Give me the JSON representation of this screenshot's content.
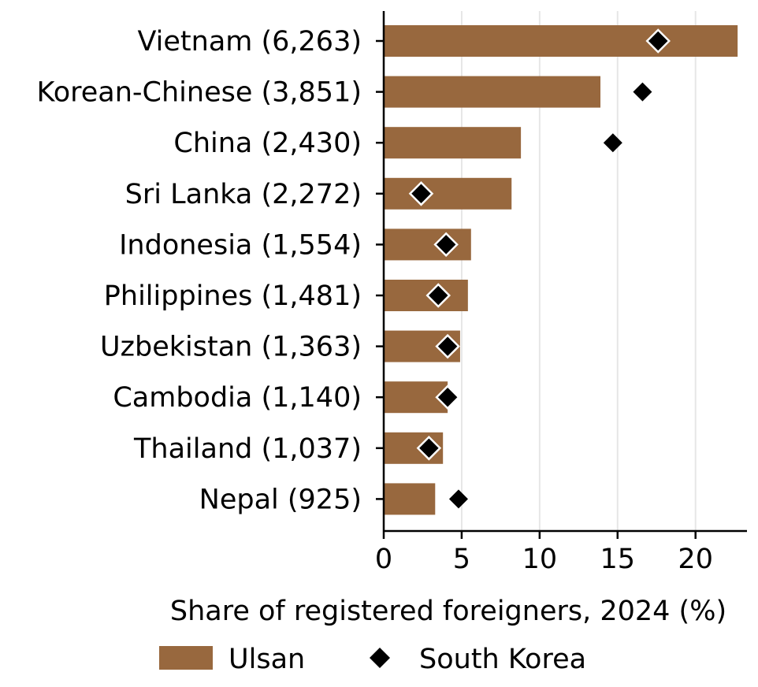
{
  "chart_data": {
    "type": "bar",
    "orientation": "horizontal",
    "categories": [
      "Vietnam (6,263)",
      "Korean-Chinese (3,851)",
      "China (2,430)",
      "Sri Lanka (2,272)",
      "Indonesia (1,554)",
      "Philippines (1,481)",
      "Uzbekistan (1,363)",
      "Cambodia (1,140)",
      "Thailand (1,037)",
      "Nepal (925)"
    ],
    "series": [
      {
        "name": "Ulsan",
        "kind": "bar",
        "color": "#98683e",
        "values": [
          22.7,
          13.9,
          8.8,
          8.2,
          5.6,
          5.4,
          4.9,
          4.1,
          3.8,
          3.3
        ]
      },
      {
        "name": "South Korea",
        "kind": "diamond",
        "color": "#000000",
        "values": [
          17.6,
          16.6,
          14.7,
          2.4,
          4.0,
          3.5,
          4.1,
          4.1,
          2.9,
          4.8
        ]
      }
    ],
    "xlabel": "Share of registered foreigners, 2024 (%)",
    "ylabel": "",
    "xlim": [
      0,
      23.3
    ],
    "xticks": [
      "0",
      "5",
      "10",
      "15",
      "20"
    ],
    "grid": "vertical",
    "legend": "bottom"
  }
}
